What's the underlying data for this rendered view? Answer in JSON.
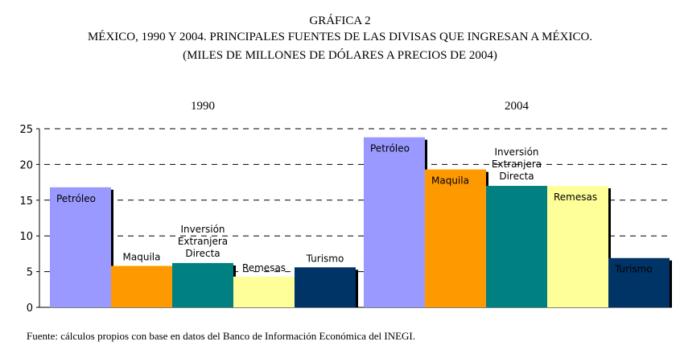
{
  "title": {
    "line1": "GRÁFICA 2",
    "line2": "MÉXICO, 1990 Y 2004. PRINCIPALES FUENTES DE LAS DIVISAS QUE INGRESAN A MÉXICO.",
    "line3": "(MILES DE MILLONES DE DÓLARES A PRECIOS DE 2004)"
  },
  "footnote": "Fuente: cálculos propios con base en datos del Banco de Información Económica del INEGI.",
  "chart_data": {
    "type": "bar",
    "title": "MÉXICO, 1990 Y 2004. PRINCIPALES FUENTES DE LAS DIVISAS QUE INGRESAN A MÉXICO.",
    "ylabel": "(MILES DE MILLONES DE DÓLARES A PRECIOS DE 2004)",
    "xlabel": "",
    "ylim": [
      0,
      25
    ],
    "yticks": [
      "0",
      "5",
      "10",
      "15",
      "20",
      "25"
    ],
    "grid": true,
    "groups": [
      "1990",
      "2004"
    ],
    "categories": [
      "Petróleo",
      "Maquila",
      "Inversión Extranjera Directa",
      "Remesas",
      "Turismo"
    ],
    "category_label_lines": [
      [
        "Petróleo"
      ],
      [
        "Maquila"
      ],
      [
        "Inversión",
        "Extranjera",
        "Directa"
      ],
      [
        "Remesas"
      ],
      [
        "Turismo"
      ]
    ],
    "series": [
      {
        "name": "1990",
        "values": [
          16.8,
          5.8,
          6.2,
          4.3,
          5.6
        ]
      },
      {
        "name": "2004",
        "values": [
          23.8,
          19.3,
          17.0,
          17.0,
          6.9
        ]
      }
    ],
    "colors": [
      "#9999ff",
      "#ff9900",
      "#008080",
      "#ffff99",
      "#003366"
    ]
  }
}
